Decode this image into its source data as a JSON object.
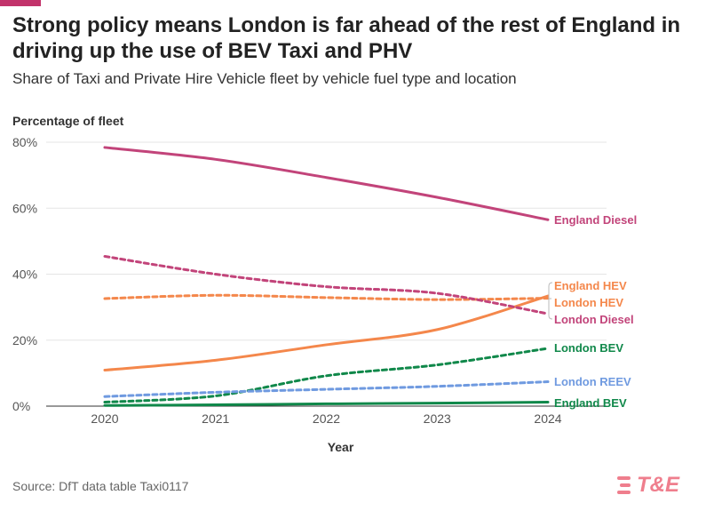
{
  "title": "Strong policy means London is far ahead of the rest of England in driving up the use of BEV Taxi and PHV",
  "subtitle": "Share of Taxi and Private Hire Vehicle fleet by vehicle fuel type and location",
  "source": "Source: DfT data table Taxi0117",
  "logo_text": "T&E",
  "colors": {
    "accent": "#c2336b",
    "grid": "#e5e5e5",
    "axis": "#333333"
  },
  "chart_data": {
    "type": "line",
    "title": "Strong policy means London is far ahead of the rest of England in driving up the use of BEV Taxi and PHV",
    "subtitle": "Share of Taxi and Private Hire Vehicle fleet by vehicle fuel type and location",
    "xlabel": "Year",
    "ylabel": "Percentage of fleet",
    "x": [
      2020,
      2021,
      2022,
      2023,
      2024
    ],
    "x_tick_labels": [
      "2020",
      "2021",
      "2022",
      "2023",
      "2024"
    ],
    "ylim": [
      0,
      80
    ],
    "y_ticks": [
      0,
      20,
      40,
      60,
      80
    ],
    "y_tick_labels": [
      "0%",
      "20%",
      "40%",
      "60%",
      "80%"
    ],
    "grid": true,
    "legend": "direct labels at line ends",
    "series": [
      {
        "name": "England Diesel",
        "values": [
          78.4,
          74.8,
          69.3,
          63.3,
          56.5
        ],
        "color": "#c2447a",
        "dashed": false
      },
      {
        "name": "England HEV",
        "values": [
          10.9,
          13.9,
          18.6,
          23.2,
          33.4
        ],
        "color": "#f4874b",
        "dashed": false
      },
      {
        "name": "London HEV",
        "values": [
          32.6,
          33.6,
          32.9,
          32.3,
          32.7
        ],
        "color": "#f4874b",
        "dashed": true
      },
      {
        "name": "London Diesel",
        "values": [
          45.4,
          40.0,
          36.2,
          34.2,
          28.0
        ],
        "color": "#c2447a",
        "dashed": true
      },
      {
        "name": "London BEV",
        "values": [
          1.2,
          3.1,
          9.2,
          12.5,
          17.5
        ],
        "color": "#10884a",
        "dashed": true
      },
      {
        "name": "London REEV",
        "values": [
          2.9,
          4.2,
          5.1,
          6.0,
          7.4
        ],
        "color": "#6f9ae0",
        "dashed": true
      },
      {
        "name": "England BEV",
        "values": [
          0.2,
          0.4,
          0.7,
          0.9,
          1.2
        ],
        "color": "#10884a",
        "dashed": false
      }
    ]
  }
}
